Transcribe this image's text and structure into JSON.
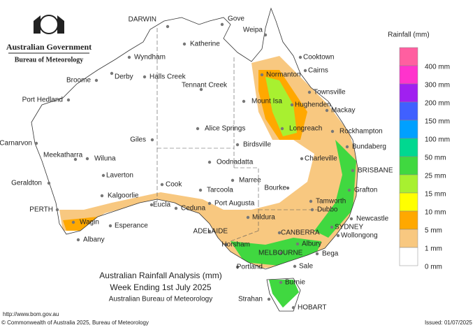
{
  "header": {
    "agency": "Australian Government",
    "bureau": "Bureau of Meteorology"
  },
  "legend": {
    "title": "Rainfall (mm)",
    "labels": [
      "400 mm",
      "300 mm",
      "200 mm",
      "150 mm",
      "100 mm",
      "50 mm",
      "25 mm",
      "15 mm",
      "10 mm",
      "5 mm",
      "1 mm",
      "0 mm"
    ],
    "colors": [
      "#ff5fa0",
      "#ff33cc",
      "#a020f0",
      "#4060ff",
      "#00a0ff",
      "#00d890",
      "#40d840",
      "#a8f030",
      "#ffff00",
      "#ffa800",
      "#f8c880",
      "#ffffff"
    ]
  },
  "places": [
    "DARWIN",
    "Gove",
    "Weipa",
    "Katherine",
    "Wyndham",
    "Cooktown",
    "Derby",
    "Halls Creek",
    "Broome",
    "Normanton",
    "Cairns",
    "Tennant Creek",
    "Townsville",
    "Port Hedland",
    "Mount Isa",
    "Hughenden",
    "Mackay",
    "Alice Springs",
    "Longreach",
    "Rockhampton",
    "Carnarvon",
    "Giles",
    "Birdsville",
    "Bundaberg",
    "Meekatharra",
    "Wiluna",
    "Charleville",
    "Oodnadatta",
    "BRISBANE",
    "Laverton",
    "Geraldton",
    "Marree",
    "Bourke",
    "Grafton",
    "Cook",
    "Tarcoola",
    "Kalgoorlie",
    "Tamworth",
    "Port Augusta",
    "Eucla",
    "Ceduna",
    "PERTH",
    "Dubbo",
    "Mildura",
    "Newcastle",
    "Wagin",
    "Esperance",
    "ADELAIDE",
    "CANBERRA",
    "SYDNEY",
    "Wollongong",
    "Albany",
    "Horsham",
    "Albury",
    "MELBOURNE",
    "Bega",
    "Portland",
    "Sale",
    "Burnie",
    "Strahan",
    "HOBART"
  ],
  "caption": [
    "Australian Rainfall Analysis (mm)",
    "Week Ending 1st July 2025",
    "Australian Bureau of Meteorology"
  ],
  "footer": {
    "url": "http://www.bom.gov.au",
    "copyright": "© Commonwealth of Australia 2025, Bureau of Meteorology",
    "issued": "Issued: 01/07/2025"
  }
}
